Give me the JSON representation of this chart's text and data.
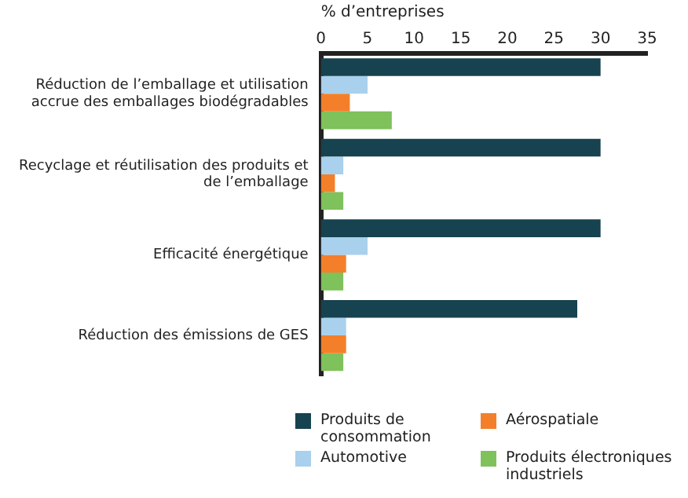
{
  "chart_data": {
    "type": "bar",
    "orientation": "horizontal",
    "xlabel": "% d’entreprises",
    "categories": [
      "Réduction de l’emballage et utilisation accrue des emballages biodégradables",
      "Recyclage et réutilisation des produits et de l’emballage",
      "Efficacité énergétique",
      "Réduction des émissions de GES"
    ],
    "series": [
      {
        "name": "Produits de consommation",
        "color": "#17424f",
        "values": [
          30,
          30,
          30,
          27.5
        ]
      },
      {
        "name": "Automotive",
        "color": "#a9d0ec",
        "values": [
          5,
          2.4,
          5,
          2.7
        ]
      },
      {
        "name": "Aérospatiale",
        "color": "#f47f2a",
        "values": [
          3.1,
          1.5,
          2.7,
          2.7
        ]
      },
      {
        "name": "Produits électroniques industriels",
        "color": "#7fc15a",
        "values": [
          7.6,
          2.4,
          2.4,
          2.4
        ]
      }
    ],
    "xlim": [
      0,
      35
    ],
    "xticks": [
      0,
      5,
      10,
      15,
      20,
      25,
      30,
      35
    ],
    "grid": false,
    "legend": "bottom"
  }
}
